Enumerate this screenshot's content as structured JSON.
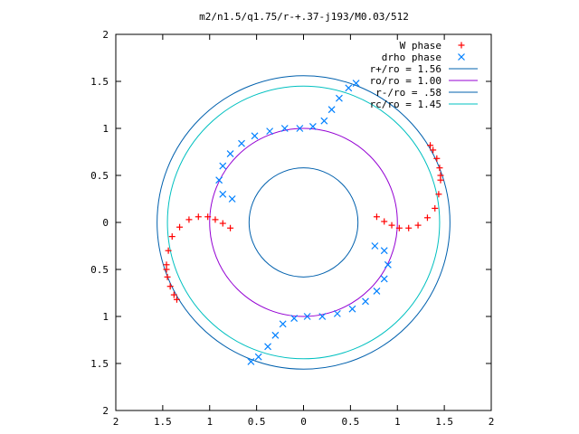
{
  "chart_data": {
    "type": "scatter",
    "title": "m2/n1.5/q1.75/r-+.37-j193/M0.03/512",
    "xlabel": "",
    "ylabel": "",
    "xlim": [
      -2,
      2
    ],
    "ylim": [
      -2,
      2
    ],
    "grid": false,
    "legend_position": "top-right",
    "x_ticks": [
      -2,
      -1.5,
      -1,
      -0.5,
      0,
      0.5,
      1,
      1.5,
      2
    ],
    "x_tick_labels": [
      "2",
      "1.5",
      "1",
      "0.5",
      "0",
      "0.5",
      "1",
      "1.5",
      "2"
    ],
    "y_ticks": [
      2,
      1.5,
      1,
      0.5,
      0,
      -0.5,
      -1,
      -1.5,
      -2
    ],
    "y_tick_labels": [
      "2",
      "1.5",
      "1",
      "0.5",
      "0",
      "0.5",
      "1",
      "1.5",
      "2"
    ],
    "series": [
      {
        "name": "W phase",
        "kind": "points",
        "marker": "plus",
        "color": "#ff0000",
        "points": [
          [
            1.46,
            0.45
          ],
          [
            1.44,
            0.3
          ],
          [
            1.4,
            0.15
          ],
          [
            1.32,
            0.05
          ],
          [
            1.22,
            -0.03
          ],
          [
            1.12,
            -0.06
          ],
          [
            1.02,
            -0.06
          ],
          [
            0.94,
            -0.03
          ],
          [
            0.86,
            0.01
          ],
          [
            0.78,
            0.06
          ],
          [
            1.46,
            0.5
          ],
          [
            1.45,
            0.58
          ],
          [
            1.42,
            0.68
          ],
          [
            1.38,
            0.77
          ],
          [
            1.35,
            0.82
          ],
          [
            -1.46,
            -0.45
          ],
          [
            -1.44,
            -0.3
          ],
          [
            -1.4,
            -0.15
          ],
          [
            -1.32,
            -0.05
          ],
          [
            -1.22,
            0.03
          ],
          [
            -1.12,
            0.06
          ],
          [
            -1.02,
            0.06
          ],
          [
            -0.94,
            0.03
          ],
          [
            -0.86,
            -0.01
          ],
          [
            -0.78,
            -0.06
          ],
          [
            -1.46,
            -0.5
          ],
          [
            -1.45,
            -0.58
          ],
          [
            -1.42,
            -0.68
          ],
          [
            -1.38,
            -0.77
          ],
          [
            -1.35,
            -0.82
          ]
        ]
      },
      {
        "name": "drho phase",
        "kind": "points",
        "marker": "cross",
        "color": "#0080ff",
        "points": [
          [
            0.76,
            -0.25
          ],
          [
            0.86,
            -0.3
          ],
          [
            0.9,
            -0.45
          ],
          [
            0.86,
            -0.6
          ],
          [
            0.78,
            -0.73
          ],
          [
            0.66,
            -0.84
          ],
          [
            0.52,
            -0.92
          ],
          [
            0.36,
            -0.97
          ],
          [
            0.2,
            -1.0
          ],
          [
            0.04,
            -1.0
          ],
          [
            -0.1,
            -1.02
          ],
          [
            -0.22,
            -1.08
          ],
          [
            -0.3,
            -1.2
          ],
          [
            -0.38,
            -1.32
          ],
          [
            -0.48,
            -1.43
          ],
          [
            -0.56,
            -1.48
          ],
          [
            -0.76,
            0.25
          ],
          [
            -0.86,
            0.3
          ],
          [
            -0.9,
            0.45
          ],
          [
            -0.86,
            0.6
          ],
          [
            -0.78,
            0.73
          ],
          [
            -0.66,
            0.84
          ],
          [
            -0.52,
            0.92
          ],
          [
            -0.36,
            0.97
          ],
          [
            -0.2,
            1.0
          ],
          [
            -0.04,
            1.0
          ],
          [
            0.1,
            1.02
          ],
          [
            0.22,
            1.08
          ],
          [
            0.3,
            1.2
          ],
          [
            0.38,
            1.32
          ],
          [
            0.48,
            1.43
          ],
          [
            0.56,
            1.48
          ]
        ]
      },
      {
        "name": "r+/ro = 1.56",
        "kind": "circle",
        "radius": 1.56,
        "color": "#0060ad"
      },
      {
        "name": "ro/ro = 1.00",
        "kind": "circle",
        "radius": 1.0,
        "color": "#9400d3"
      },
      {
        "name": "r-/ro = .58",
        "kind": "circle",
        "radius": 0.58,
        "color": "#0060ad"
      },
      {
        "name": "rc/ro = 1.45",
        "kind": "circle",
        "radius": 1.45,
        "color": "#00c0c0"
      }
    ]
  }
}
